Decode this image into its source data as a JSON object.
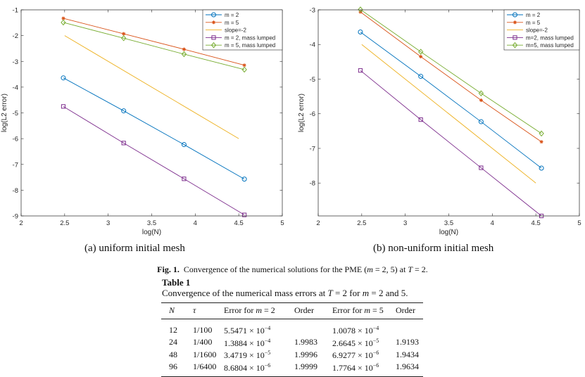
{
  "chart_data": [
    {
      "type": "line",
      "id": "a",
      "subcaption": "(a)  uniform initial mesh",
      "xlabel": "log(N)",
      "ylabel": "log(L2 error)",
      "xlim": [
        2,
        5
      ],
      "ylim": [
        -9,
        -1
      ],
      "xticks": [
        2,
        2.5,
        3,
        3.5,
        4,
        4.5,
        5
      ],
      "xtick_labels": [
        "2",
        "2.5",
        "3",
        "3.5",
        "4",
        "4.5",
        "5"
      ],
      "yticks": [
        -9,
        -8,
        -7,
        -6,
        -5,
        -4,
        -3,
        -2,
        -1
      ],
      "ytick_labels": [
        "-9",
        "-8",
        "-7",
        "-6",
        "-5",
        "-4",
        "-3",
        "-2",
        "-1"
      ],
      "legend_position": "top-right",
      "series": [
        {
          "name": "m = 2",
          "color": "#0072BD",
          "marker": "circle",
          "x": [
            2.4849,
            3.1781,
            3.8712,
            4.5643
          ],
          "y": [
            -3.64,
            -4.92,
            -6.23,
            -7.57
          ]
        },
        {
          "name": "m = 5",
          "color": "#D95319",
          "marker": "star",
          "x": [
            2.4849,
            3.1781,
            3.8712,
            4.5643
          ],
          "y": [
            -1.33,
            -1.93,
            -2.53,
            -3.15
          ]
        },
        {
          "name": "slope=-2",
          "color": "#EDB120",
          "marker": "none",
          "x": [
            2.5,
            4.5
          ],
          "y": [
            -2,
            -6
          ]
        },
        {
          "name": "m = 2, mass lumped",
          "color": "#7E2F8E",
          "marker": "square",
          "x": [
            2.4849,
            3.1781,
            3.8712,
            4.5643
          ],
          "y": [
            -4.75,
            -6.17,
            -7.56,
            -8.96
          ]
        },
        {
          "name": "m = 5, mass lumped",
          "color": "#77AC30",
          "marker": "diamond",
          "x": [
            2.4849,
            3.1781,
            3.8712,
            4.5643
          ],
          "y": [
            -1.49,
            -2.1,
            -2.72,
            -3.32
          ]
        }
      ]
    },
    {
      "type": "line",
      "id": "b",
      "subcaption": "(b)  non-uniform initial mesh",
      "xlabel": "log(N)",
      "ylabel": "log(L2 error)",
      "xlim": [
        2,
        5
      ],
      "ylim": [
        -8.95,
        -3
      ],
      "xticks": [
        2,
        2.5,
        3,
        3.5,
        4,
        4.5,
        5
      ],
      "xtick_labels": [
        "2",
        "2.5",
        "3",
        "3.5",
        "4",
        "4.5",
        "5"
      ],
      "yticks": [
        -8,
        -7,
        -6,
        -5,
        -4,
        -3
      ],
      "ytick_labels": [
        "-8",
        "-7",
        "-6",
        "-5",
        "-4",
        "-3"
      ],
      "legend_position": "top-right",
      "series": [
        {
          "name": "m = 2",
          "color": "#0072BD",
          "marker": "circle",
          "x": [
            2.4849,
            3.1781,
            3.8712,
            4.5643
          ],
          "y": [
            -3.64,
            -4.92,
            -6.23,
            -7.57
          ]
        },
        {
          "name": "m = 5",
          "color": "#D95319",
          "marker": "star",
          "x": [
            2.4849,
            3.1781,
            3.8712,
            4.5643
          ],
          "y": [
            -3.06,
            -4.35,
            -5.61,
            -6.81
          ]
        },
        {
          "name": "slope=-2",
          "color": "#EDB120",
          "marker": "none",
          "x": [
            2.5,
            4.5
          ],
          "y": [
            -4,
            -8
          ]
        },
        {
          "name": "m=2, mass lumped",
          "color": "#7E2F8E",
          "marker": "square",
          "x": [
            2.4849,
            3.1781,
            3.8712,
            4.5643
          ],
          "y": [
            -4.75,
            -6.17,
            -7.56,
            -8.95
          ]
        },
        {
          "name": "m=5, mass lumped",
          "color": "#77AC30",
          "marker": "diamond",
          "x": [
            2.4849,
            3.1781,
            3.8712,
            4.5643
          ],
          "y": [
            -2.99,
            -4.21,
            -5.41,
            -6.57
          ]
        }
      ]
    }
  ],
  "figure": {
    "label": "Fig. 1.",
    "caption_pre": "Convergence of the numerical solutions for the PME (",
    "caption_m": "m",
    "caption_mid": " = 2, 5) at ",
    "caption_T": "T",
    "caption_post": " = 2."
  },
  "table": {
    "title": "Table 1",
    "caption_pre": "Convergence of the numerical mass errors at ",
    "caption_T": "T",
    "caption_mid1": " = 2 for ",
    "caption_m": "m",
    "caption_post": " = 2 and 5.",
    "headers": {
      "N": "N",
      "tau": "τ",
      "err2_pre": "Error for ",
      "err2_m": "m",
      "err2_post": " = 2",
      "order2": "Order",
      "err5_pre": "Error for ",
      "err5_m": "m",
      "err5_post": " = 5",
      "order5": "Order"
    },
    "rows": [
      {
        "N": "12",
        "tau": "1/100",
        "err2_mant": "5.5471 × 10",
        "err2_exp": "−4",
        "order2": "",
        "err5_mant": "1.0078 × 10",
        "err5_exp": "−4",
        "order5": ""
      },
      {
        "N": "24",
        "tau": "1/400",
        "err2_mant": "1.3884 × 10",
        "err2_exp": "−4",
        "order2": "1.9983",
        "err5_mant": "2.6645 × 10",
        "err5_exp": "−5",
        "order5": "1.9193"
      },
      {
        "N": "48",
        "tau": "1/1600",
        "err2_mant": "3.4719 × 10",
        "err2_exp": "−5",
        "order2": "1.9996",
        "err5_mant": "6.9277 × 10",
        "err5_exp": "−6",
        "order5": "1.9434"
      },
      {
        "N": "96",
        "tau": "1/6400",
        "err2_mant": "8.6804 × 10",
        "err2_exp": "−6",
        "order2": "1.9999",
        "err5_mant": "1.7764 × 10",
        "err5_exp": "−6",
        "order5": "1.9634"
      }
    ]
  }
}
